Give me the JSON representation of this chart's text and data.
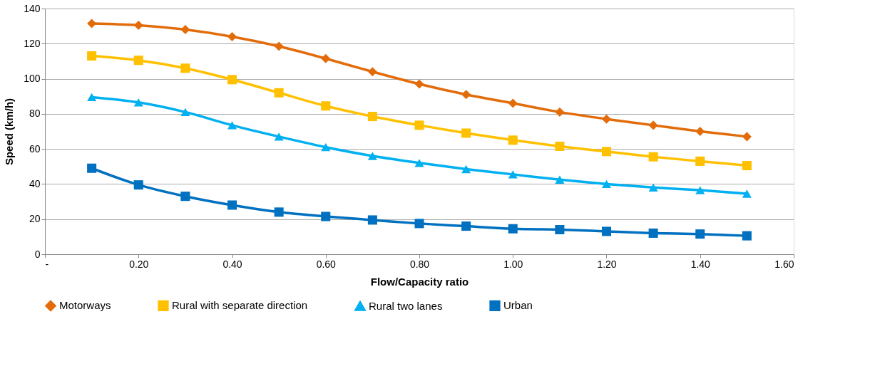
{
  "chart_data": {
    "type": "line",
    "xlabel": "Flow/Capacity ratio",
    "ylabel": "Speed (km/h)",
    "x": [
      0.1,
      0.2,
      0.3,
      0.4,
      0.5,
      0.6,
      0.7,
      0.8,
      0.9,
      1.0,
      1.1,
      1.2,
      1.3,
      1.4,
      1.5
    ],
    "series": [
      {
        "name": "Motorways",
        "color": "#e36c0a",
        "marker": "diamond",
        "values": [
          131.5,
          130.5,
          128,
          124,
          118.5,
          111.5,
          104,
          97,
          91,
          86,
          81,
          77,
          73.5,
          70,
          67
        ]
      },
      {
        "name": "Rural with separate direction",
        "color": "#ffc000",
        "marker": "square",
        "values": [
          113,
          110.5,
          106,
          99.5,
          92,
          84.5,
          78.5,
          73.5,
          69,
          65,
          61.5,
          58.5,
          55.5,
          53,
          50.5
        ]
      },
      {
        "name": "Rural two lanes",
        "color": "#00b0f0",
        "marker": "triangle",
        "values": [
          89.5,
          86.5,
          81,
          73.5,
          67,
          61,
          56,
          52,
          48.5,
          45.5,
          42.5,
          40,
          38,
          36.5,
          34.5
        ]
      },
      {
        "name": "Urban",
        "color": "#0070c0",
        "marker": "square",
        "values": [
          49,
          39.5,
          33,
          28,
          24,
          21.5,
          19.5,
          17.5,
          16,
          14.5,
          14,
          13,
          12,
          11.5,
          10.5
        ]
      }
    ],
    "xlim": [
      0,
      1.6
    ],
    "xticks": [
      {
        "value": 0,
        "label": "-"
      },
      {
        "value": 0.2,
        "label": "0.20"
      },
      {
        "value": 0.4,
        "label": "0.40"
      },
      {
        "value": 0.6,
        "label": "0.60"
      },
      {
        "value": 0.8,
        "label": "0.80"
      },
      {
        "value": 1.0,
        "label": "1.00"
      },
      {
        "value": 1.2,
        "label": "1.20"
      },
      {
        "value": 1.4,
        "label": "1.40"
      },
      {
        "value": 1.6,
        "label": "1.60"
      }
    ],
    "ylim": [
      0,
      140
    ],
    "yticks": [
      0,
      20,
      40,
      60,
      80,
      100,
      120,
      140
    ],
    "grid": "y",
    "legend": "bottom",
    "line_style": "solid"
  }
}
